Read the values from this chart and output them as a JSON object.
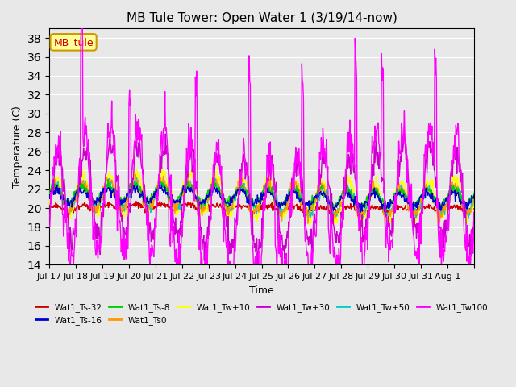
{
  "title": "MB Tule Tower: Open Water 1 (3/19/14-now)",
  "xlabel": "Time",
  "ylabel": "Temperature (C)",
  "ylim": [
    14,
    39
  ],
  "yticks": [
    14,
    16,
    18,
    20,
    22,
    24,
    26,
    28,
    30,
    32,
    34,
    36,
    38
  ],
  "n_days": 16,
  "annotation_text": "MB_tule",
  "annotation_color": "#cc0000",
  "annotation_bg": "#ffff99",
  "annotation_border": "#cc9900",
  "series_colors": {
    "Wat1_Ts-32": "#cc0000",
    "Wat1_Ts-16": "#0000cc",
    "Wat1_Ts-8": "#00cc00",
    "Wat1_Ts0": "#ff9900",
    "Wat1_Tw+10": "#ffff00",
    "Wat1_Tw+30": "#cc00cc",
    "Wat1_Tw+50": "#00cccc",
    "Wat1_Tw100": "#ff00ff"
  },
  "x_tick_positions": [
    0,
    1,
    2,
    3,
    4,
    5,
    6,
    7,
    8,
    9,
    10,
    11,
    12,
    13,
    14,
    15,
    16
  ],
  "x_tick_labels": [
    "Jul 17",
    "Jul 18",
    "Jul 19",
    "Jul 20",
    "Jul 21",
    "Jul 22",
    "Jul 23",
    "Jul 24",
    "Jul 25",
    "Jul 26",
    "Jul 27",
    "Jul 28",
    "Jul 29",
    "Jul 30",
    "Jul 31",
    "Aug 1",
    ""
  ],
  "background_color": "#e8e8e8",
  "plot_bg_color": "#e8e8e8"
}
